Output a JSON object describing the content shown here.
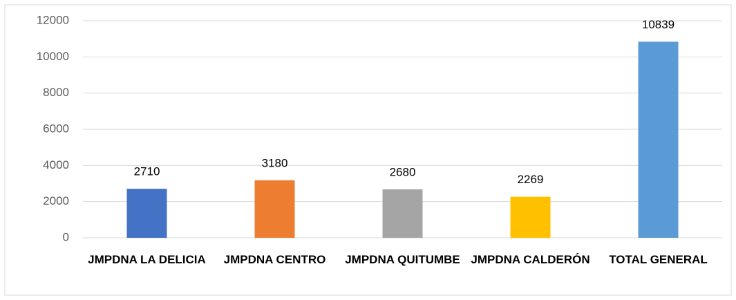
{
  "chart_data": {
    "type": "bar",
    "categories": [
      "JMPDNA LA DELICIA",
      "JMPDNA CENTRO",
      "JMPDNA QUITUMBE",
      "JMPDNA CALDERÓN",
      "TOTAL GENERAL"
    ],
    "values": [
      2710,
      3180,
      2680,
      2269,
      10839
    ],
    "colors": [
      "#4472c4",
      "#ed7d31",
      "#a5a5a5",
      "#ffc000",
      "#5b9bd5"
    ],
    "ylim": [
      0,
      12000
    ],
    "yticks": [
      0,
      2000,
      4000,
      6000,
      8000,
      10000,
      12000
    ],
    "grid": true,
    "data_labels": true
  }
}
